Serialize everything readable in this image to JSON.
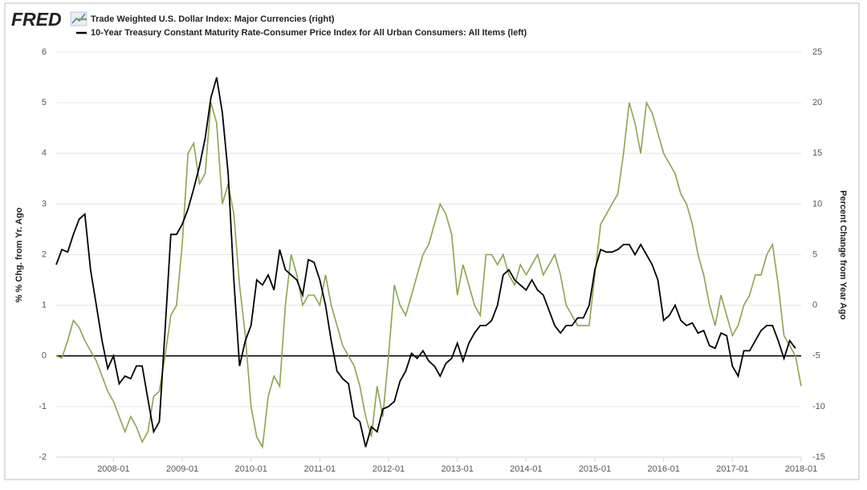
{
  "chart_data": {
    "type": "line",
    "logo": "FRED",
    "ylabel": "% % Chg. from Yr. Ago",
    "y2label": "Percent Change from Year Ago",
    "x": [
      "2007-03",
      "2007-04",
      "2007-05",
      "2007-06",
      "2007-07",
      "2007-08",
      "2007-09",
      "2007-10",
      "2007-11",
      "2007-12",
      "2008-01",
      "2008-02",
      "2008-03",
      "2008-04",
      "2008-05",
      "2008-06",
      "2008-07",
      "2008-08",
      "2008-09",
      "2008-10",
      "2008-11",
      "2008-12",
      "2009-01",
      "2009-02",
      "2009-03",
      "2009-04",
      "2009-05",
      "2009-06",
      "2009-07",
      "2009-08",
      "2009-09",
      "2009-10",
      "2009-11",
      "2009-12",
      "2010-01",
      "2010-02",
      "2010-03",
      "2010-04",
      "2010-05",
      "2010-06",
      "2010-07",
      "2010-08",
      "2010-09",
      "2010-10",
      "2010-11",
      "2010-12",
      "2011-01",
      "2011-02",
      "2011-03",
      "2011-04",
      "2011-05",
      "2011-06",
      "2011-07",
      "2011-08",
      "2011-09",
      "2011-10",
      "2011-11",
      "2011-12",
      "2012-01",
      "2012-02",
      "2012-03",
      "2012-04",
      "2012-05",
      "2012-06",
      "2012-07",
      "2012-08",
      "2012-09",
      "2012-10",
      "2012-11",
      "2012-12",
      "2013-01",
      "2013-02",
      "2013-03",
      "2013-04",
      "2013-05",
      "2013-06",
      "2013-07",
      "2013-08",
      "2013-09",
      "2013-10",
      "2013-11",
      "2013-12",
      "2014-01",
      "2014-02",
      "2014-03",
      "2014-04",
      "2014-05",
      "2014-06",
      "2014-07",
      "2014-08",
      "2014-09",
      "2014-10",
      "2014-11",
      "2014-12",
      "2015-01",
      "2015-02",
      "2015-03",
      "2015-04",
      "2015-05",
      "2015-06",
      "2015-07",
      "2015-08",
      "2015-09",
      "2015-10",
      "2015-11",
      "2015-12",
      "2016-01",
      "2016-02",
      "2016-03",
      "2016-04",
      "2016-05",
      "2016-06",
      "2016-07",
      "2016-08",
      "2016-09",
      "2016-10",
      "2016-11",
      "2016-12",
      "2017-01",
      "2017-02",
      "2017-03",
      "2017-04",
      "2017-05",
      "2017-06",
      "2017-07",
      "2017-08",
      "2017-09",
      "2017-10",
      "2017-11",
      "2017-12",
      "2018-01"
    ],
    "series": [
      {
        "name": "Trade Weighted U.S. Dollar Index: Major Currencies (right)",
        "color": "#89a54e",
        "axis": "y2",
        "values": [
          -5,
          -5.2,
          -3.5,
          -1.5,
          -2.2,
          -3.5,
          -4.5,
          -5.5,
          -7,
          -8.5,
          -9.5,
          -11,
          -12.5,
          -11,
          -12,
          -13.5,
          -12.5,
          -9,
          -8.5,
          -5,
          -1,
          0,
          6,
          15,
          16,
          12,
          13,
          20,
          18,
          10,
          12,
          9,
          2,
          -3,
          -10,
          -13,
          -14,
          -9,
          -7,
          -8,
          0,
          5,
          3,
          0,
          1,
          1,
          0,
          3,
          0,
          -2,
          -4,
          -5,
          -6,
          -8,
          -11,
          -13,
          -8,
          -11,
          -5,
          2,
          0,
          -1,
          1,
          3,
          5,
          6,
          8,
          10,
          9,
          7,
          1,
          4,
          2,
          0,
          -1,
          5,
          5,
          4,
          5,
          3,
          2,
          4,
          3,
          4,
          5,
          3,
          4,
          5,
          3,
          0,
          -1,
          -2,
          -2,
          -2,
          3,
          8,
          9,
          10,
          11,
          15,
          20,
          18,
          15,
          20,
          19,
          17,
          15,
          14,
          13,
          11,
          10,
          8,
          5,
          3,
          0,
          -2,
          1,
          -1,
          -3,
          -2,
          0,
          1,
          3,
          3,
          5,
          6,
          2,
          -3,
          -4,
          -5,
          -8
        ]
      },
      {
        "name": "10-Year Treasury Constant Maturity Rate-Consumer Price Index for All Urban Consumers: All Items (left)",
        "color": "#000000",
        "values": [
          1.8,
          2.1,
          2.05,
          2.4,
          2.7,
          2.8,
          1.7,
          1.0,
          0.3,
          -0.25,
          0.0,
          -0.55,
          -0.4,
          -0.45,
          -0.2,
          -0.2,
          -0.85,
          -1.5,
          -1.3,
          0.5,
          2.4,
          2.4,
          2.6,
          2.9,
          3.3,
          3.75,
          4.3,
          5.1,
          5.5,
          4.8,
          3.6,
          1.5,
          -0.2,
          0.3,
          0.6,
          1.5,
          1.4,
          1.6,
          1.3,
          2.1,
          1.7,
          1.6,
          1.5,
          1.2,
          1.9,
          1.85,
          1.5,
          1.0,
          0.3,
          -0.3,
          -0.45,
          -0.55,
          -1.2,
          -1.3,
          -1.8,
          -1.4,
          -1.5,
          -1.05,
          -1.0,
          -0.9,
          -0.5,
          -0.3,
          0.05,
          -0.05,
          0.1,
          -0.1,
          -0.2,
          -0.4,
          -0.15,
          -0.05,
          0.25,
          -0.1,
          0.25,
          0.45,
          0.6,
          0.6,
          0.7,
          1.0,
          1.6,
          1.7,
          1.5,
          1.4,
          1.3,
          1.5,
          1.3,
          1.2,
          0.9,
          0.6,
          0.45,
          0.6,
          0.6,
          0.75,
          0.75,
          1.0,
          1.7,
          2.1,
          2.05,
          2.05,
          2.1,
          2.2,
          2.2,
          2.0,
          2.2,
          2.0,
          1.8,
          1.5,
          0.7,
          0.8,
          1.0,
          0.7,
          0.6,
          0.65,
          0.45,
          0.5,
          0.2,
          0.15,
          0.45,
          0.4,
          -0.2,
          -0.4,
          0.1,
          0.1,
          0.3,
          0.5,
          0.6,
          0.6,
          0.3,
          -0.05,
          0.3,
          0.15,
          null
        ]
      }
    ],
    "xlim": [
      "2007-03",
      "2018-01"
    ],
    "xticks": [
      "2008-01",
      "2009-01",
      "2010-01",
      "2011-01",
      "2012-01",
      "2013-01",
      "2014-01",
      "2015-01",
      "2016-01",
      "2017-01",
      "2018-01"
    ],
    "ylim": [
      -2,
      6
    ],
    "yticks": [
      -2,
      -1,
      0,
      1,
      2,
      3,
      4,
      5,
      6
    ],
    "y2lim": [
      -15,
      25
    ],
    "y2ticks": [
      -15,
      -10,
      -5,
      0,
      5,
      10,
      15,
      20,
      25
    ],
    "grid": true
  }
}
